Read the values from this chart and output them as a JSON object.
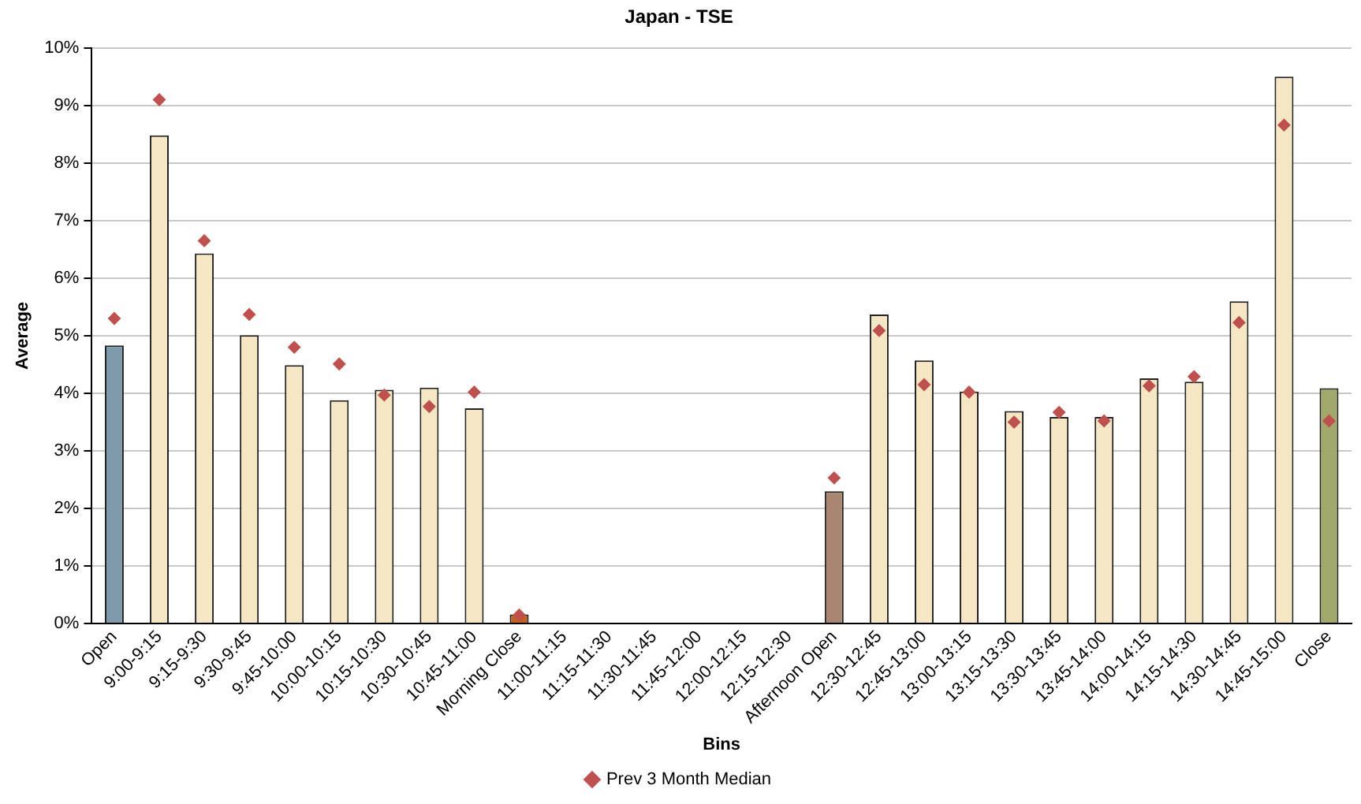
{
  "chart_data": {
    "type": "bar",
    "title": "Japan - TSE",
    "xlabel": "Bins",
    "ylabel": "Average",
    "categories": [
      "Open",
      "9:00-9:15",
      "9:15-9:30",
      "9:30-9:45",
      "9:45-10:00",
      "10:00-10:15",
      "10:15-10:30",
      "10:30-10:45",
      "10:45-11:00",
      "Morning Close",
      "11:00-11:15",
      "11:15-11:30",
      "11:30-11:45",
      "11:45-12:00",
      "12:00-12:15",
      "12:15-12:30",
      "Afternoon Open",
      "12:30-12:45",
      "12:45-13:00",
      "13:00-13:15",
      "13:15-13:30",
      "13:30-13:45",
      "13:45-14:00",
      "14:00-14:15",
      "14:15-14:30",
      "14:30-14:45",
      "14:45-15:00",
      "Close"
    ],
    "series": [
      {
        "type": "bar",
        "colors": [
          "#7f9aab",
          "#f5e6c4",
          "#f5e6c4",
          "#f5e6c4",
          "#f5e6c4",
          "#f5e6c4",
          "#f5e6c4",
          "#f5e6c4",
          "#f5e6c4",
          "#c0631c",
          null,
          null,
          null,
          null,
          null,
          null,
          "#a98672",
          "#f5e6c4",
          "#f5e6c4",
          "#f5e6c4",
          "#f5e6c4",
          "#f5e6c4",
          "#f5e6c4",
          "#f5e6c4",
          "#f5e6c4",
          "#f5e6c4",
          "#f5e6c4",
          "#a0a86a"
        ],
        "values": [
          4.83,
          8.48,
          6.43,
          5.01,
          4.49,
          3.88,
          4.06,
          4.1,
          3.74,
          0.16,
          null,
          null,
          null,
          null,
          null,
          null,
          2.3,
          5.37,
          4.57,
          4.03,
          3.69,
          3.59,
          3.59,
          4.26,
          4.2,
          5.6,
          9.5,
          4.09
        ]
      },
      {
        "type": "scatter",
        "name": "Prev 3 Month Median",
        "color": "#c0504d",
        "marker": "diamond",
        "values": [
          5.3,
          9.1,
          6.65,
          5.37,
          4.8,
          4.51,
          3.97,
          3.77,
          4.02,
          0.15,
          null,
          null,
          null,
          null,
          null,
          null,
          2.53,
          5.09,
          4.15,
          4.02,
          3.5,
          3.67,
          3.52,
          4.13,
          4.29,
          5.23,
          8.66,
          3.52
        ]
      }
    ],
    "ylim": [
      0,
      10
    ],
    "yticks": [
      {
        "value": 0,
        "label": "0%"
      },
      {
        "value": 1,
        "label": "1%"
      },
      {
        "value": 2,
        "label": "2%"
      },
      {
        "value": 3,
        "label": "3%"
      },
      {
        "value": 4,
        "label": "4%"
      },
      {
        "value": 5,
        "label": "5%"
      },
      {
        "value": 6,
        "label": "6%"
      },
      {
        "value": 7,
        "label": "7%"
      },
      {
        "value": 8,
        "label": "8%"
      },
      {
        "value": 9,
        "label": "9%"
      },
      {
        "value": 10,
        "label": "10%"
      }
    ],
    "grid": "y",
    "legend": "bottom"
  }
}
